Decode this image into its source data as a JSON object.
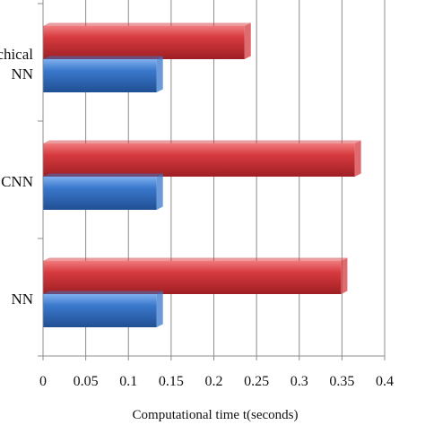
{
  "chart_data": {
    "type": "bar",
    "orientation": "horizontal",
    "categories": [
      "chical\nNN",
      "CNN",
      "NN"
    ],
    "series": [
      {
        "color": "#d63a3f",
        "values": [
          0.236,
          0.365,
          0.349
        ]
      },
      {
        "color": "#3a78cc",
        "values": [
          0.133,
          0.133,
          0.133
        ]
      }
    ],
    "xlabel": "Computational time t(seconds)",
    "xlim": [
      0,
      0.4
    ],
    "xticks": [
      "0",
      "0.05",
      "0.1",
      "0.15",
      "0.2",
      "0.25",
      "0.3",
      "0.35",
      "0.4"
    ],
    "grid": "vertical",
    "legend": "none"
  }
}
